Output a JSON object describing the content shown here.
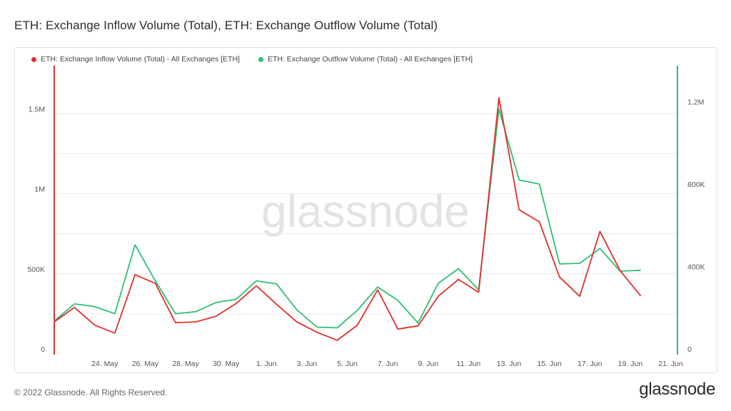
{
  "title": "ETH: Exchange Inflow Volume (Total), ETH: Exchange Outflow Volume (Total)",
  "footer": "© 2022 Glassnode. All Rights Reserved.",
  "brand": "glassnode",
  "watermark": "glassnode",
  "chart_data": {
    "type": "line",
    "x": [
      "22 May",
      "23 May",
      "24 May",
      "25 May",
      "26 May",
      "27 May",
      "28 May",
      "29 May",
      "30 May",
      "31 May",
      "1 Jun",
      "2 Jun",
      "3 Jun",
      "4 Jun",
      "5 Jun",
      "6 Jun",
      "7 Jun",
      "8 Jun",
      "9 Jun",
      "10 Jun",
      "11 Jun",
      "12 Jun",
      "13 Jun",
      "14 Jun",
      "15 Jun",
      "16 Jun",
      "17 Jun",
      "18 Jun",
      "19 Jun",
      "20 Jun"
    ],
    "xticks": [
      "24. May",
      "26. May",
      "28. May",
      "30. May",
      "1. Jun",
      "3. Jun",
      "5. Jun",
      "7. Jun",
      "9. Jun",
      "11. Jun",
      "13. Jun",
      "15. Jun",
      "17. Jun",
      "19. Jun",
      "21. Jun"
    ],
    "xtick_positions": [
      2.5,
      4.5,
      6.5,
      8.5,
      10.5,
      12.5,
      14.5,
      16.5,
      18.5,
      20.5,
      22.5,
      24.5,
      26.5,
      28.5,
      30.5
    ],
    "xlim": [
      0,
      30.8
    ],
    "series": [
      {
        "name": "ETH: Exchange Inflow Volume (Total) - All Exchanges [ETH]",
        "axis": "left",
        "color": "#e0302d",
        "values": [
          200000,
          290000,
          180000,
          130000,
          495000,
          440000,
          195000,
          200000,
          235000,
          315000,
          425000,
          310000,
          200000,
          135000,
          85000,
          180000,
          400000,
          155000,
          175000,
          360000,
          465000,
          385000,
          1600000,
          900000,
          825000,
          480000,
          360000,
          765000,
          520000,
          365000
        ]
      },
      {
        "name": "ETH: Exchange Outflow Volume (Total) - All Exchanges [ETH]",
        "axis": "right",
        "color": "#2fbf71",
        "values": [
          160000,
          243000,
          230000,
          195000,
          530000,
          355000,
          195000,
          205000,
          250000,
          265000,
          355000,
          340000,
          215000,
          130000,
          127000,
          212000,
          325000,
          260000,
          150000,
          343000,
          414000,
          311000,
          1190000,
          845000,
          825000,
          437000,
          440000,
          512000,
          402000,
          406000
        ]
      }
    ],
    "y_left": {
      "ylim": [
        0,
        1800000
      ],
      "ticks": [
        0,
        500000,
        1000000,
        1500000
      ],
      "tick_labels": [
        "0",
        "500K",
        "1M",
        "1.5M"
      ]
    },
    "y_right": {
      "ylim": [
        0,
        1400000
      ],
      "ticks": [
        0,
        400000,
        800000,
        1200000
      ],
      "tick_labels": [
        "0",
        "400K",
        "800K",
        "1.2M"
      ]
    },
    "grid": true,
    "legend_position": "top-left"
  }
}
